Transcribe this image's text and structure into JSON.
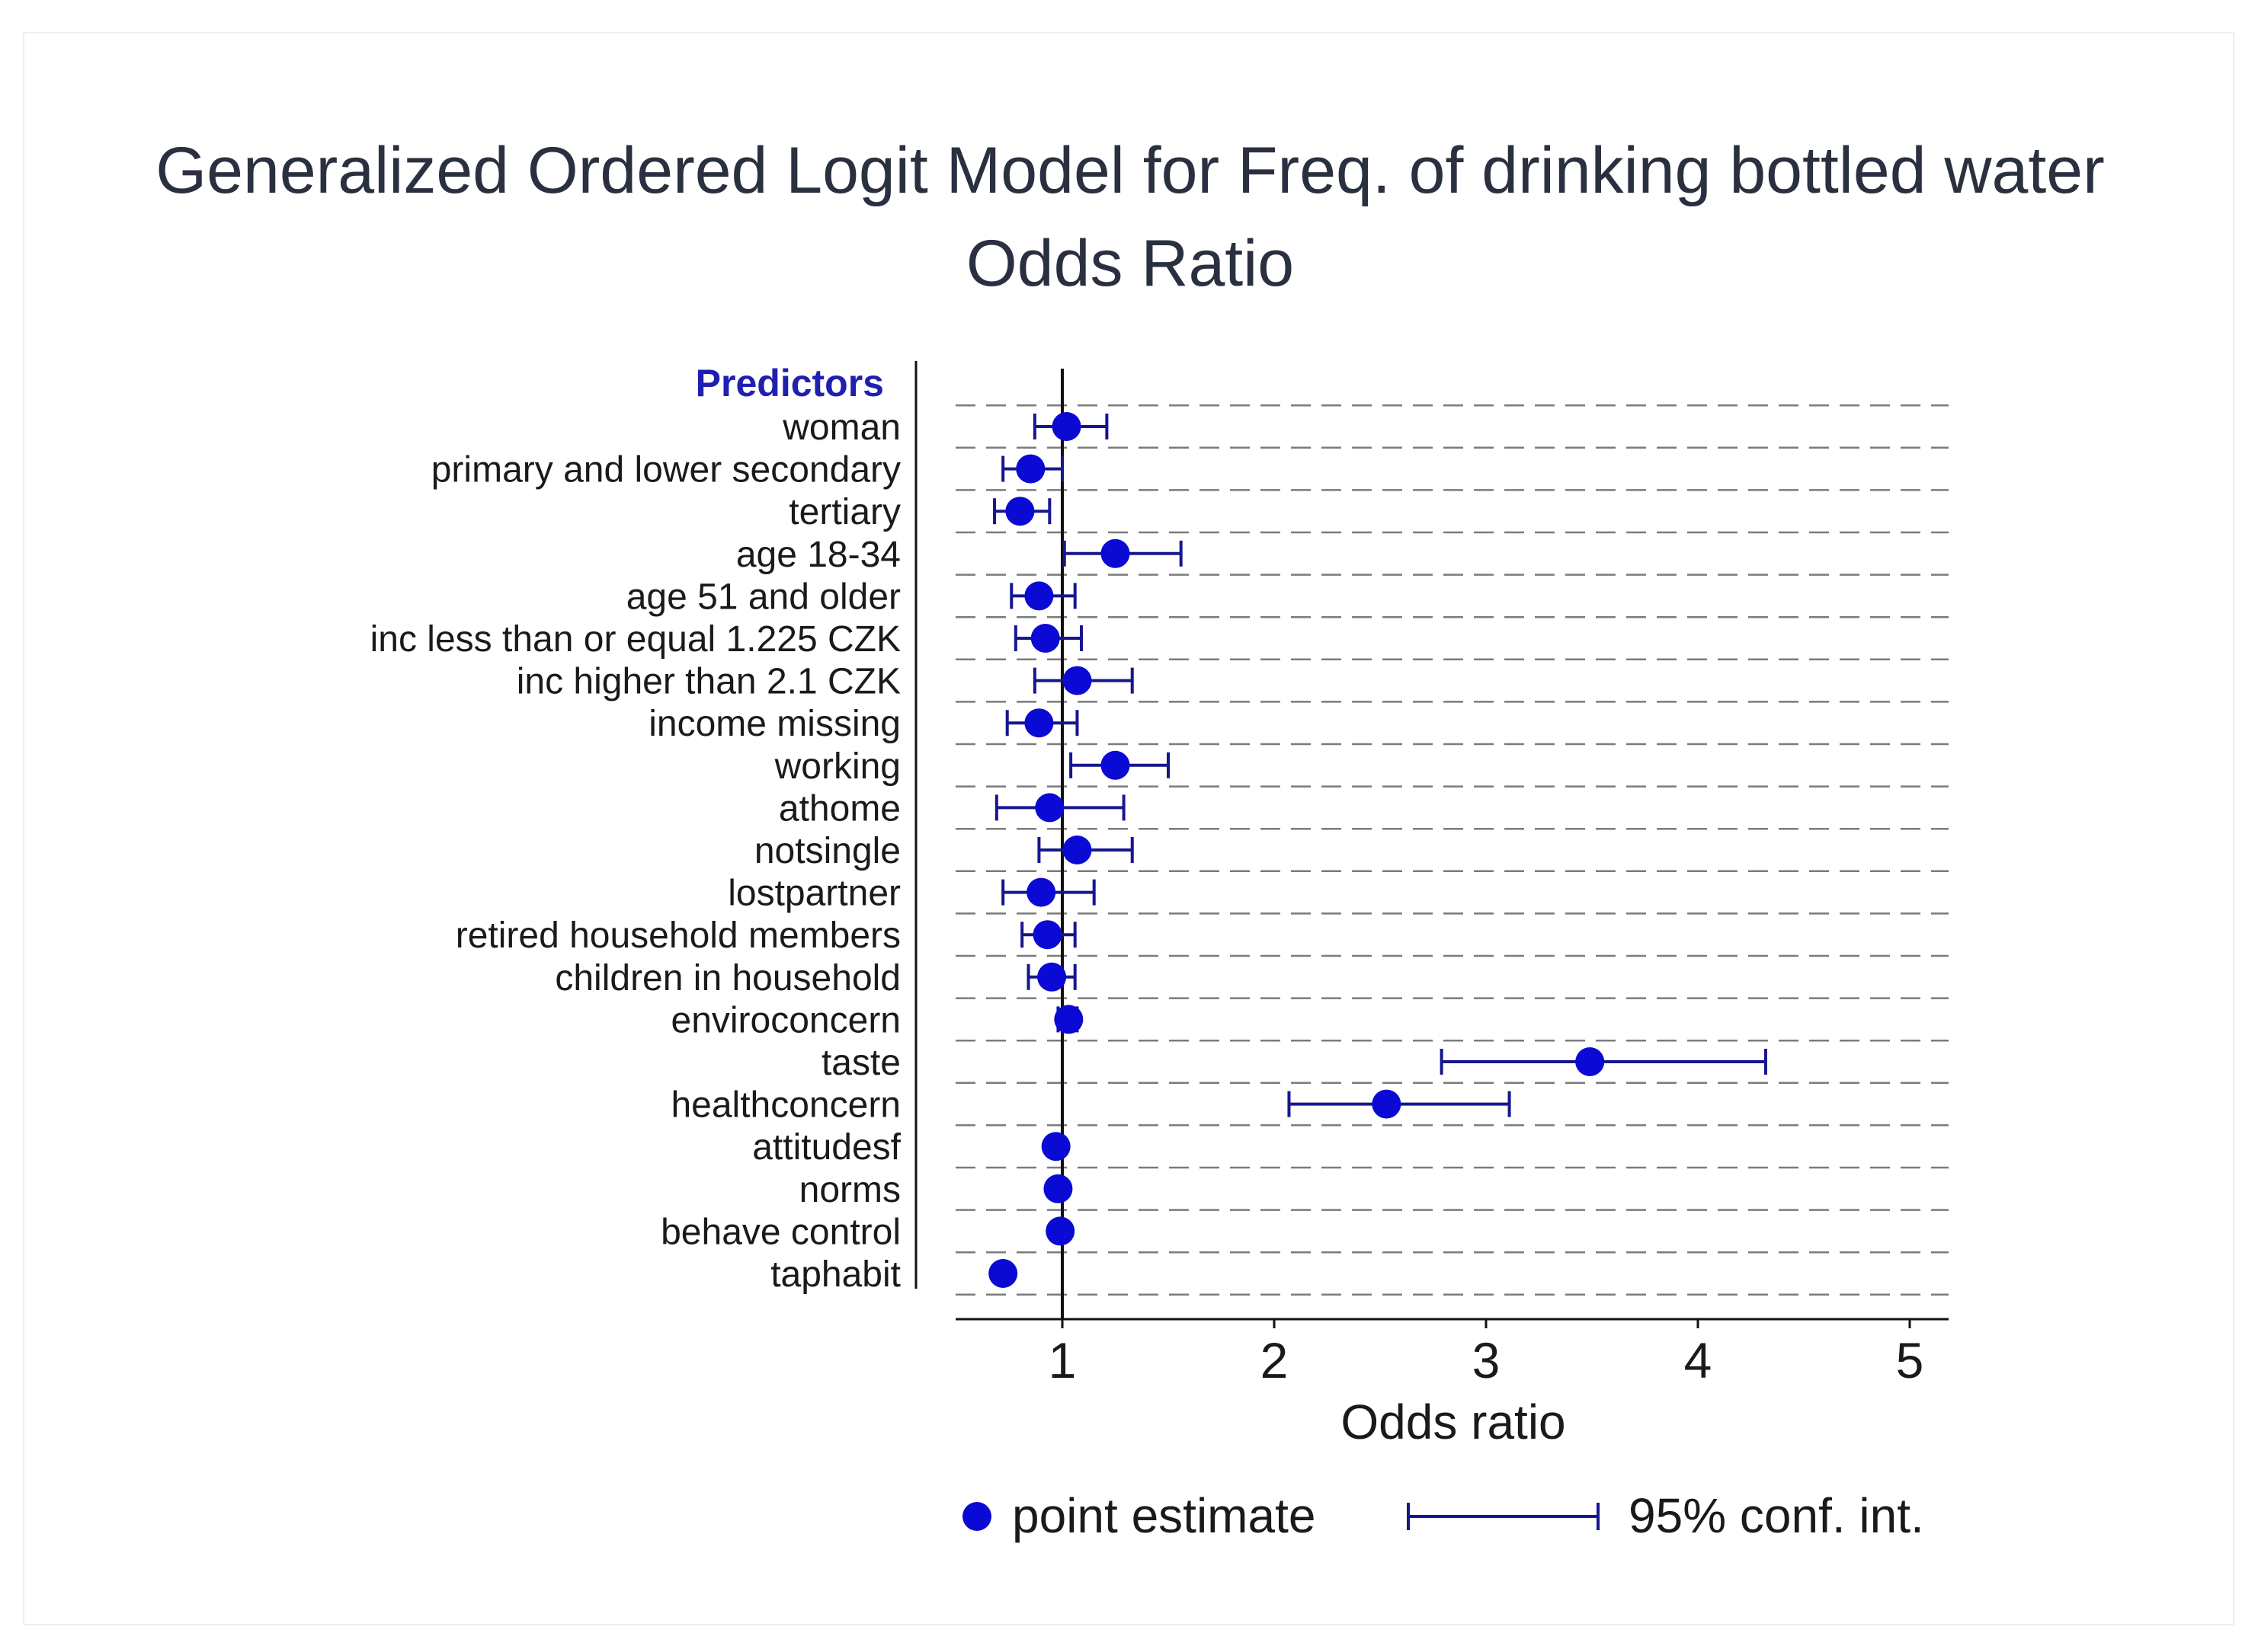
{
  "chart_data": {
    "type": "scatter",
    "subtype": "forest-plot",
    "title_lines": [
      "Generalized Ordered Logit Model for Freq. of drinking bottled water",
      "Odds Ratio"
    ],
    "y_header": "Predictors",
    "xlabel": "Odds ratio",
    "xlim": [
      0.5,
      5.2
    ],
    "xticks": [
      1,
      2,
      3,
      4,
      5
    ],
    "reference_line": 1,
    "grid": "horizontal dashed",
    "legend_position": "bottom",
    "legend": {
      "point": "point estimate",
      "interval": "95% conf. int."
    },
    "colors": {
      "marker": "#0a0ad4",
      "interval": "#16168f",
      "title": "#2b3040",
      "header": "#1f1fb0",
      "text": "#1a1a1a",
      "grid": "#7b7b7b"
    },
    "rows": [
      {
        "label": "woman",
        "estimate": 1.02,
        "lower": 0.87,
        "upper": 1.21
      },
      {
        "label": "primary and lower secondary",
        "estimate": 0.85,
        "lower": 0.72,
        "upper": 1.0
      },
      {
        "label": "tertiary",
        "estimate": 0.8,
        "lower": 0.68,
        "upper": 0.94
      },
      {
        "label": "age 18-34",
        "estimate": 1.25,
        "lower": 1.01,
        "upper": 1.56
      },
      {
        "label": "age 51 and older",
        "estimate": 0.89,
        "lower": 0.76,
        "upper": 1.06
      },
      {
        "label": "inc less than or equal 1.225 CZK",
        "estimate": 0.92,
        "lower": 0.78,
        "upper": 1.09
      },
      {
        "label": "inc higher than 2.1 CZK",
        "estimate": 1.07,
        "lower": 0.87,
        "upper": 1.33
      },
      {
        "label": "income missing",
        "estimate": 0.89,
        "lower": 0.74,
        "upper": 1.07
      },
      {
        "label": "working",
        "estimate": 1.25,
        "lower": 1.04,
        "upper": 1.5
      },
      {
        "label": "athome",
        "estimate": 0.94,
        "lower": 0.69,
        "upper": 1.29
      },
      {
        "label": "notsingle",
        "estimate": 1.07,
        "lower": 0.89,
        "upper": 1.33
      },
      {
        "label": "lostpartner",
        "estimate": 0.9,
        "lower": 0.72,
        "upper": 1.15
      },
      {
        "label": "retired household members",
        "estimate": 0.93,
        "lower": 0.81,
        "upper": 1.06
      },
      {
        "label": "children in household",
        "estimate": 0.95,
        "lower": 0.84,
        "upper": 1.06
      },
      {
        "label": "enviroconcern",
        "estimate": 1.03,
        "lower": 0.98,
        "upper": 1.07
      },
      {
        "label": "taste",
        "estimate": 3.49,
        "lower": 2.79,
        "upper": 4.32
      },
      {
        "label": "healthconcern",
        "estimate": 2.53,
        "lower": 2.07,
        "upper": 3.11
      },
      {
        "label": "attitudesf",
        "estimate": 0.97,
        "lower": 0.95,
        "upper": 0.99
      },
      {
        "label": "norms",
        "estimate": 0.98,
        "lower": 0.96,
        "upper": 1.0
      },
      {
        "label": "behave control",
        "estimate": 0.99,
        "lower": 0.97,
        "upper": 1.01
      },
      {
        "label": "taphabit",
        "estimate": 0.72,
        "lower": 0.7,
        "upper": 0.74
      }
    ]
  }
}
